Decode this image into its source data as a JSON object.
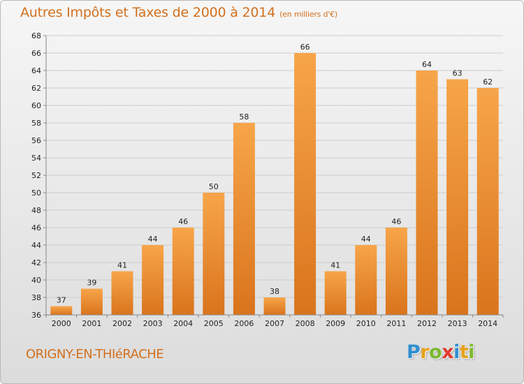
{
  "title": {
    "main": "Autres Impôts et Taxes de 2000 à 2014",
    "unit": "(en milliers d'€)"
  },
  "commune": "ORIGNY-EN-THIéRACHE",
  "logo": {
    "text": "Proxiti",
    "letters": [
      {
        "ch": "P",
        "color": "#2f8fd0"
      },
      {
        "ch": "r",
        "color": "#e6a21a"
      },
      {
        "ch": "o",
        "color": "#7cb82f"
      },
      {
        "ch": "x",
        "color": "#e03a2f"
      },
      {
        "ch": "i",
        "color": "#2f8fd0"
      },
      {
        "ch": "t",
        "color": "#e6a21a"
      },
      {
        "ch": "i",
        "color": "#7cb82f"
      }
    ]
  },
  "colors": {
    "bar_light": "#f7a54a",
    "bar_dark": "#d9741c",
    "title": "#d2701e",
    "grid": "#cccccc",
    "axis_text": "#222222"
  },
  "chart_data": {
    "type": "bar",
    "categories": [
      "2000",
      "2001",
      "2002",
      "2003",
      "2004",
      "2005",
      "2006",
      "2007",
      "2008",
      "2009",
      "2010",
      "2011",
      "2012",
      "2013",
      "2014"
    ],
    "values": [
      37,
      39,
      41,
      44,
      46,
      50,
      58,
      38,
      66,
      41,
      44,
      46,
      64,
      63,
      62
    ],
    "ylim": [
      36,
      68
    ],
    "yticks": [
      36,
      38,
      40,
      42,
      44,
      46,
      48,
      50,
      52,
      54,
      56,
      58,
      60,
      62,
      64,
      66,
      68
    ],
    "grid": true,
    "legend": "none"
  }
}
